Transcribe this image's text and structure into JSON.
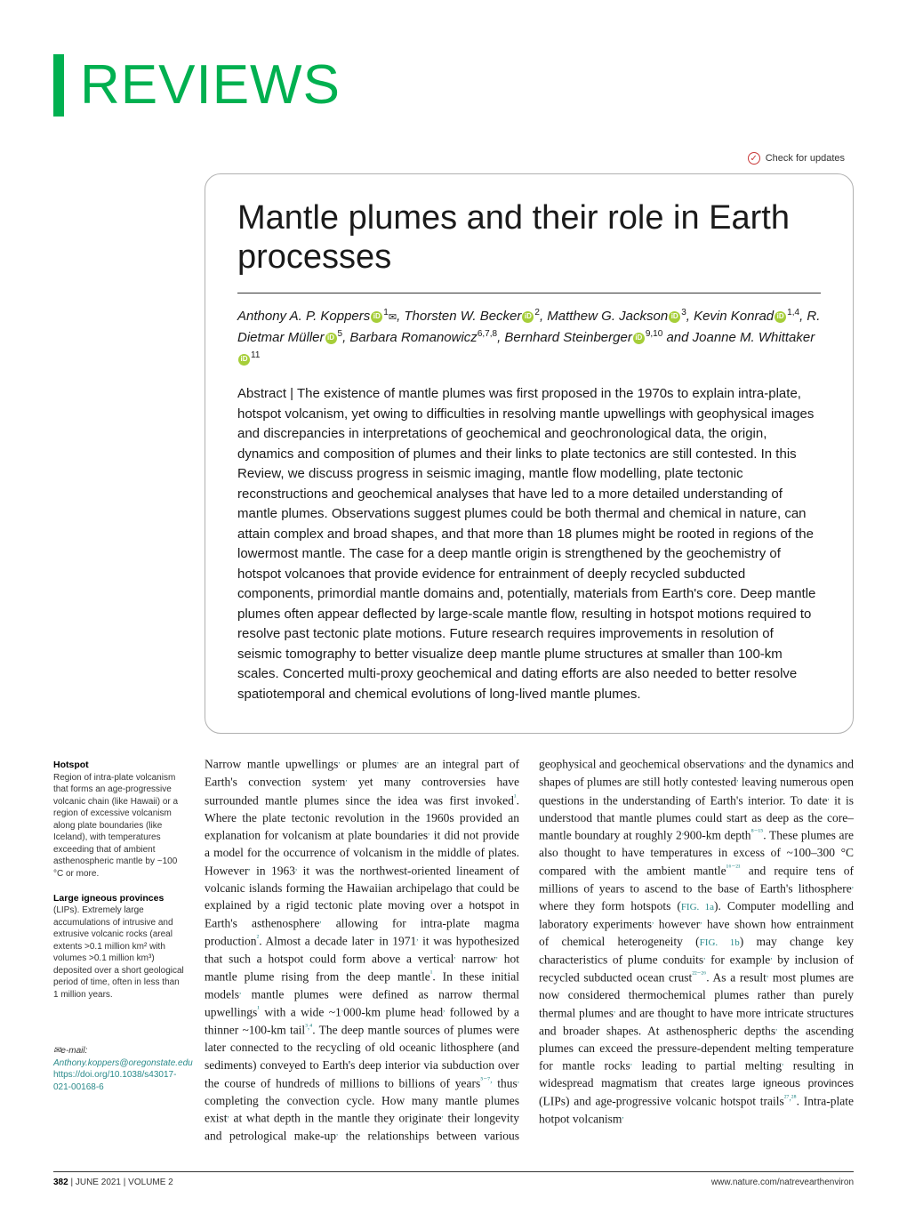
{
  "journal": {
    "section_label": "REVIEWS",
    "accent_color": "#00b050"
  },
  "badge": {
    "label": "Check for updates"
  },
  "article": {
    "title": "Mantle plumes and their role in Earth processes",
    "authors_html": "Anthony A. P. Koppers|ORCID|1|ENV|, Thorsten W. Becker|ORCID|2|, Matthew G. Jackson|ORCID|3|, Kevin Konrad|ORCID|1,4|, R. Dietmar Müller|ORCID|5|, Barbara Romanowicz|6,7,8|, Bernhard Steinberger|ORCID|9,10| and Joanne M. Whittaker|ORCID|11|",
    "abstract": "Abstract | The existence of mantle plumes was first proposed in the 1970s to explain intra-plate, hotspot volcanism, yet owing to difficulties in resolving mantle upwellings with geophysical images and discrepancies in interpretations of geochemical and geochronological data, the origin, dynamics and composition of plumes and their links to plate tectonics are still contested. In this Review, we discuss progress in seismic imaging, mantle flow modelling, plate tectonic reconstructions and geochemical analyses that have led to a more detailed understanding of mantle plumes. Observations suggest plumes could be both thermal and chemical in nature, can attain complex and broad shapes, and that more than 18 plumes might be rooted in regions of the lowermost mantle. The case for a deep mantle origin is strengthened by the geochemistry of hotspot volcanoes that provide evidence for entrainment of deeply recycled subducted components, primordial mantle domains and, potentially, materials from Earth's core. Deep mantle plumes often appear deflected by large-scale mantle flow, resulting in hotspot motions required to resolve past tectonic plate motions. Future research requires improvements in resolution of seismic tomography to better visualize deep mantle plume structures at smaller than 100-km scales. Concerted multi-proxy geochemical and dating efforts are also needed to better resolve spatiotemporal and chemical evolutions of long-lived mantle plumes."
  },
  "glossary": [
    {
      "term": "Hotspot",
      "def": "Region of intra-plate volcanism that forms an age-progressive volcanic chain (like Hawaii) or a region of excessive volcanism along plate boundaries (like Iceland), with temperatures exceeding that of ambient asthenospheric mantle by ~100 °C or more."
    },
    {
      "term": "Large igneous provinces",
      "def": "(LIPs). Extremely large accumulations of intrusive and extrusive volcanic rocks (areal extents >0.1 million km² with volumes >0.1 million km³) deposited over a short geological period of time, often in less than 1 million years."
    }
  ],
  "contact": {
    "email_label": "✉e-mail:",
    "email": "Anthony.koppers@oregonstate.edu",
    "doi": "https://doi.org/10.1038/s43017-021-00168-6"
  },
  "body": {
    "col1": "Narrow mantle upwellings, or plumes, are an integral part of Earth's convection system, yet many controversies have surrounded mantle plumes since the idea was first invoked¹. Where the plate tectonic revolution in the 1960s provided an explanation for volcanism at plate boundaries, it did not provide a model for the occurrence of volcanism in the middle of plates. However, in 1963, it was the northwest-oriented lineament of volcanic islands forming the Hawaiian archipelago that could be explained by a rigid tectonic plate moving over a hotspot in Earth's asthenosphere, allowing for intra-plate magma production². Almost a decade later, in 1971, it was hypothesized that such a hotspot could form above a vertical, narrow, hot mantle plume rising from the deep mantle¹. In these initial models, mantle plumes were defined as narrow thermal upwellings¹ with a wide ~1,000-km plume head, followed by a thinner ~100-km tail³,⁴. The deep mantle sources of plumes were later connected to the recycling of old oceanic lithosphere (and sediments) conveyed to Earth's deep interior via subduction over the course of hundreds of millions to billions of years⁵⁻⁷, thus, completing the convection cycle. How many mantle plumes exist, at what depth in the mantle they originate, their longevity and petrological make-up,",
    "col2": "the relationships between various geophysical and geochemical observations, and the dynamics and shapes of plumes are still hotly contested, leaving numerous open questions in the understanding of Earth's interior.\n    To date, it is understood that mantle plumes could start as deep as the core–mantle boundary at roughly 2,900-km depth⁸⁻¹⁵. These plumes are also thought to have temperatures in excess of ~100–300 °C compared with the ambient mantle¹⁶⁻²¹ and require tens of millions of years to ascend to the base of Earth's lithosphere, where they form hotspots (FIG. 1a). Computer modelling and laboratory experiments, however, have shown how entrainment of chemical heterogeneity (FIG. 1b) may change key characteristics of plume conduits, for example, by inclusion of recycled subducted ocean crust²²⁻²⁶. As a result, most plumes are now considered thermochemical plumes rather than purely thermal plumes, and are thought to have more intricate structures and broader shapes. At asthenospheric depths, the ascending plumes can exceed the pressure-dependent melting temperature for mantle rocks, leading to partial melting, resulting in widespread magmatism that creates large igneous provinces (LIPs) and age-progressive volcanic hotspot trails²⁷,²⁸. Intra-plate hotpot volcanism,"
  },
  "footer": {
    "page": "382",
    "issue": "JUNE 2021",
    "volume": "VOLUME 2",
    "url": "www.nature.com/natrevearthenviron"
  }
}
